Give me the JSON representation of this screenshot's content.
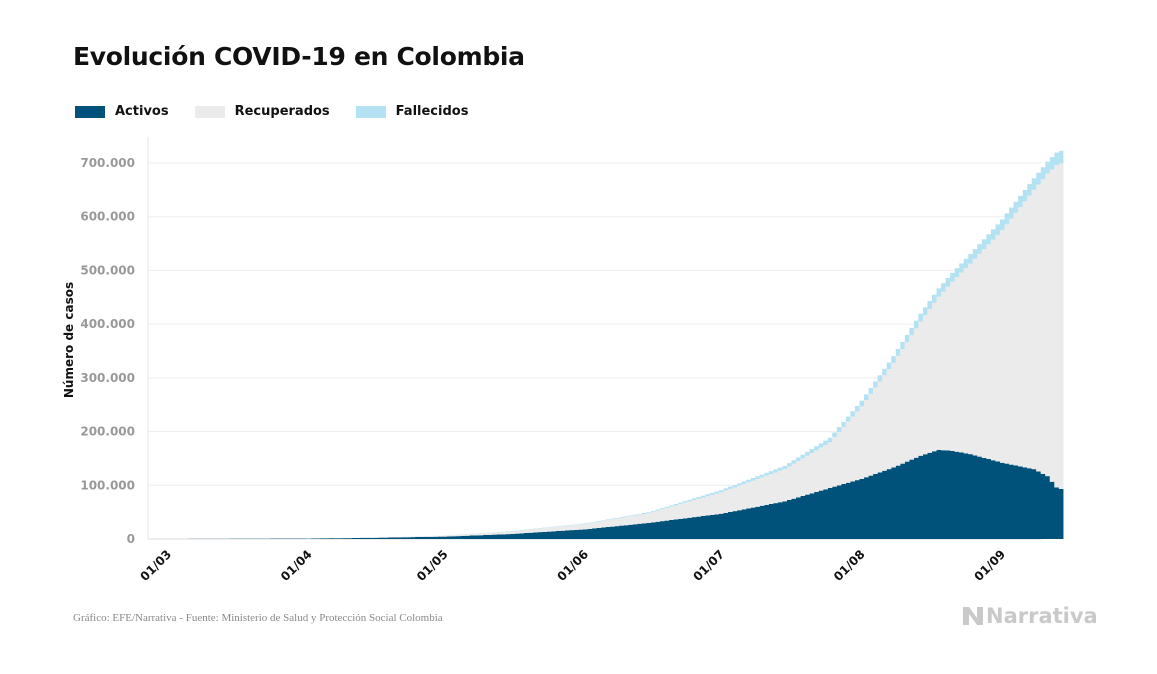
{
  "title": "Evolución COVID-19 en Colombia",
  "legend": [
    {
      "label": "Activos",
      "color": "#00527a"
    },
    {
      "label": "Recuperados",
      "color": "#ebebeb"
    },
    {
      "label": "Fallecidos",
      "color": "#b5e2f2"
    }
  ],
  "footer": "Gráfico: EFE/Narrativa - Fuente: Ministerio de Salud y Protección Social Colombia",
  "logo_text": "Narrativa",
  "logo_icon": "narrativa-n-icon",
  "chart_data": {
    "type": "area",
    "stacked": true,
    "step": true,
    "ylabel": "Número de casos",
    "ylim": [
      0,
      700000
    ],
    "yticks": [
      0,
      100000,
      200000,
      300000,
      400000,
      500000,
      600000,
      700000
    ],
    "ytick_labels": [
      "0",
      "100.000",
      "200.000",
      "300.000",
      "400.000",
      "500.000",
      "600.000",
      "700.000"
    ],
    "xticks": [
      "01/03",
      "01/04",
      "01/05",
      "01/06",
      "01/07",
      "01/08",
      "01/09"
    ],
    "x_start": "01/03",
    "x_end": "14/09",
    "grid": true,
    "series": [
      {
        "name": "Activos",
        "color": "#00527a",
        "points": [
          [
            "01/03",
            0
          ],
          [
            "01/04",
            800
          ],
          [
            "15/04",
            2200
          ],
          [
            "01/05",
            4500
          ],
          [
            "15/05",
            9000
          ],
          [
            "01/06",
            18000
          ],
          [
            "15/06",
            30000
          ],
          [
            "01/07",
            47000
          ],
          [
            "15/07",
            70000
          ],
          [
            "25/07",
            95000
          ],
          [
            "01/08",
            112000
          ],
          [
            "08/08",
            133000
          ],
          [
            "14/08",
            155000
          ],
          [
            "18/08",
            166000
          ],
          [
            "21/08",
            164000
          ],
          [
            "25/08",
            158000
          ],
          [
            "01/09",
            142000
          ],
          [
            "08/09",
            130000
          ],
          [
            "11/09",
            117000
          ],
          [
            "13/09",
            96000
          ],
          [
            "14/09",
            93000
          ]
        ]
      },
      {
        "name": "Recuperados",
        "color": "#ebebeb",
        "points": [
          [
            "01/03",
            0
          ],
          [
            "01/04",
            0
          ],
          [
            "15/04",
            300
          ],
          [
            "01/05",
            1600
          ],
          [
            "15/05",
            4500
          ],
          [
            "01/06",
            10000
          ],
          [
            "15/06",
            18000
          ],
          [
            "01/07",
            40000
          ],
          [
            "15/07",
            60000
          ],
          [
            "25/07",
            85000
          ],
          [
            "01/08",
            135000
          ],
          [
            "08/08",
            195000
          ],
          [
            "14/08",
            250000
          ],
          [
            "18/08",
            285000
          ],
          [
            "21/08",
            315000
          ],
          [
            "25/08",
            355000
          ],
          [
            "01/09",
            433000
          ],
          [
            "08/09",
            520000
          ],
          [
            "11/09",
            563000
          ],
          [
            "13/09",
            600000
          ],
          [
            "14/09",
            606000
          ]
        ]
      },
      {
        "name": "Fallecidos",
        "color": "#b5e2f2",
        "points": [
          [
            "01/03",
            0
          ],
          [
            "01/04",
            16
          ],
          [
            "15/04",
            120
          ],
          [
            "01/05",
            300
          ],
          [
            "15/05",
            600
          ],
          [
            "01/06",
            1000
          ],
          [
            "15/06",
            1800
          ],
          [
            "01/07",
            4000
          ],
          [
            "15/07",
            6000
          ],
          [
            "25/07",
            8500
          ],
          [
            "01/08",
            10500
          ],
          [
            "08/08",
            12500
          ],
          [
            "14/08",
            14500
          ],
          [
            "18/08",
            15500
          ],
          [
            "21/08",
            16500
          ],
          [
            "25/08",
            17500
          ],
          [
            "01/09",
            20000
          ],
          [
            "08/09",
            21500
          ],
          [
            "11/09",
            22500
          ],
          [
            "13/09",
            23200
          ],
          [
            "14/09",
            23500
          ]
        ]
      }
    ]
  }
}
